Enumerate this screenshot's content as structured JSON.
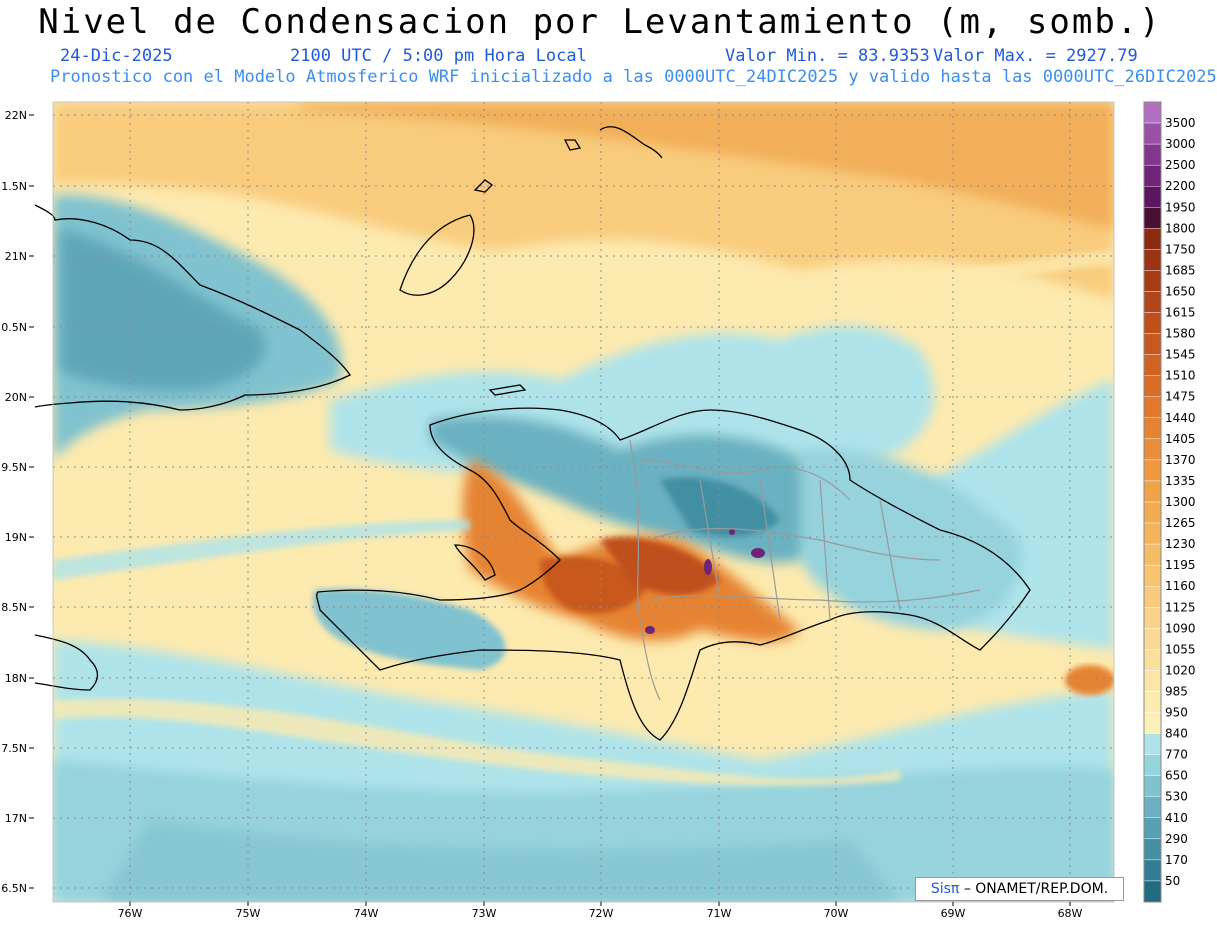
{
  "header": {
    "title": "Nivel de Condensacion por Levantamiento (m, somb.)",
    "date": "24-Dic-2025",
    "time": "2100 UTC / 5:00 pm Hora Local",
    "valmin": "Valor Min. = 83.9353",
    "valmax": "Valor Max. = 2927.79",
    "model_line": "Pronostico con el Modelo Atmosferico WRF inicializado a las 0000UTC_24DIC2025 y valido hasta las  0000UTC_26DIC2025"
  },
  "watermark": {
    "sis": "Sisπ",
    "org": "– ONAMET/REP.DOM."
  },
  "map": {
    "lat_labels": [
      "22N",
      "1.5N",
      "21N",
      "0.5N",
      "20N",
      "9.5N",
      "19N",
      "8.5N",
      "18N",
      "7.5N",
      "17N",
      "6.5N"
    ],
    "lon_labels": [
      "76W",
      "75W",
      "74W",
      "73W",
      "72W",
      "71W",
      "70W",
      "69W",
      "68W"
    ],
    "legend": [
      {
        "label": "3500",
        "color": "#b36fbf"
      },
      {
        "label": "3000",
        "color": "#9b4fa6"
      },
      {
        "label": "2500",
        "color": "#85358f"
      },
      {
        "label": "2200",
        "color": "#6f2477"
      },
      {
        "label": "1950",
        "color": "#5a1660"
      },
      {
        "label": "1800",
        "color": "#4b0f33"
      },
      {
        "label": "1750",
        "color": "#8a2a0e"
      },
      {
        "label": "1685",
        "color": "#9a3412"
      },
      {
        "label": "1650",
        "color": "#a63c15"
      },
      {
        "label": "1615",
        "color": "#b34618"
      },
      {
        "label": "1580",
        "color": "#bf4f1b"
      },
      {
        "label": "1545",
        "color": "#c8591e"
      },
      {
        "label": "1510",
        "color": "#d16322"
      },
      {
        "label": "1475",
        "color": "#da6d26"
      },
      {
        "label": "1440",
        "color": "#e1782b"
      },
      {
        "label": "1405",
        "color": "#e68332"
      },
      {
        "label": "1370",
        "color": "#eb8e39"
      },
      {
        "label": "1335",
        "color": "#ee9840"
      },
      {
        "label": "1300",
        "color": "#f0a248"
      },
      {
        "label": "1265",
        "color": "#f2ab51"
      },
      {
        "label": "1230",
        "color": "#f4b45b"
      },
      {
        "label": "1195",
        "color": "#f5bc66"
      },
      {
        "label": "1160",
        "color": "#f7c471"
      },
      {
        "label": "1125",
        "color": "#f8cb7c"
      },
      {
        "label": "1090",
        "color": "#f9d287"
      },
      {
        "label": "1055",
        "color": "#fad992"
      },
      {
        "label": "1020",
        "color": "#fbdf9c"
      },
      {
        "label": "985",
        "color": "#fce5a6"
      },
      {
        "label": "950",
        "color": "#fdeaaf"
      },
      {
        "label": "840",
        "color": "#fdf0b8"
      },
      {
        "label": "770",
        "color": "#aee3ea"
      },
      {
        "label": "650",
        "color": "#96d3dd"
      },
      {
        "label": "530",
        "color": "#80c2cf"
      },
      {
        "label": "410",
        "color": "#6bb1c1"
      },
      {
        "label": "290",
        "color": "#57a0b2"
      },
      {
        "label": "170",
        "color": "#438fa3"
      },
      {
        "label": "50",
        "color": "#317e94"
      },
      {
        "label": "",
        "color": "#226c83"
      }
    ]
  }
}
